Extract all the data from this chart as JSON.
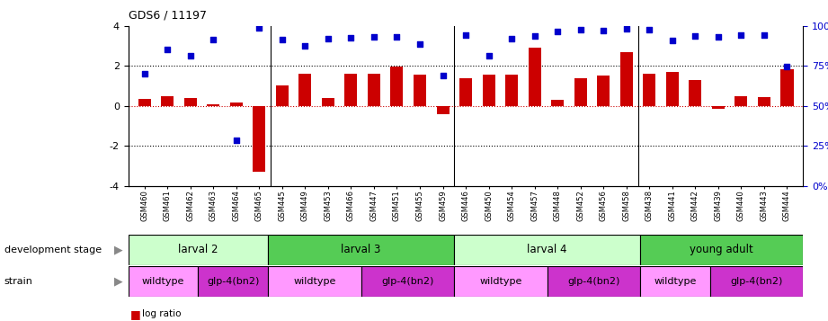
{
  "title": "GDS6 / 11197",
  "samples": [
    "GSM460",
    "GSM461",
    "GSM462",
    "GSM463",
    "GSM464",
    "GSM465",
    "GSM445",
    "GSM449",
    "GSM453",
    "GSM466",
    "GSM447",
    "GSM451",
    "GSM455",
    "GSM459",
    "GSM446",
    "GSM450",
    "GSM454",
    "GSM457",
    "GSM448",
    "GSM452",
    "GSM456",
    "GSM458",
    "GSM438",
    "GSM441",
    "GSM442",
    "GSM439",
    "GSM440",
    "GSM443",
    "GSM444"
  ],
  "log_ratio": [
    0.35,
    0.5,
    0.4,
    0.1,
    0.15,
    -3.3,
    1.0,
    1.6,
    0.4,
    1.6,
    1.6,
    1.95,
    1.55,
    -0.4,
    1.4,
    1.55,
    1.55,
    2.9,
    0.3,
    1.4,
    1.5,
    2.7,
    1.6,
    1.7,
    1.3,
    -0.15,
    0.5,
    0.45,
    1.85
  ],
  "percentile_y": [
    1.6,
    2.8,
    2.5,
    3.3,
    -1.7,
    3.9,
    3.3,
    3.0,
    3.35,
    3.4,
    3.45,
    3.45,
    3.1,
    1.5,
    3.55,
    2.5,
    3.35,
    3.5,
    3.7,
    3.8,
    3.75,
    3.85,
    3.8,
    3.25,
    3.5,
    3.45,
    3.55,
    3.55,
    1.95
  ],
  "bar_color": "#cc0000",
  "dot_color": "#0000cc",
  "dev_stages": [
    {
      "label": "larval 2",
      "start": 0,
      "end": 6,
      "color": "#ccffcc"
    },
    {
      "label": "larval 3",
      "start": 6,
      "end": 14,
      "color": "#55cc55"
    },
    {
      "label": "larval 4",
      "start": 14,
      "end": 22,
      "color": "#ccffcc"
    },
    {
      "label": "young adult",
      "start": 22,
      "end": 29,
      "color": "#55cc55"
    }
  ],
  "strain_groups": [
    {
      "label": "wildtype",
      "start": 0,
      "end": 3,
      "color": "#ff99ff"
    },
    {
      "label": "glp-4(bn2)",
      "start": 3,
      "end": 6,
      "color": "#cc33cc"
    },
    {
      "label": "wildtype",
      "start": 6,
      "end": 10,
      "color": "#ff99ff"
    },
    {
      "label": "glp-4(bn2)",
      "start": 10,
      "end": 14,
      "color": "#cc33cc"
    },
    {
      "label": "wildtype",
      "start": 14,
      "end": 18,
      "color": "#ff99ff"
    },
    {
      "label": "glp-4(bn2)",
      "start": 18,
      "end": 22,
      "color": "#cc33cc"
    },
    {
      "label": "wildtype",
      "start": 22,
      "end": 25,
      "color": "#ff99ff"
    },
    {
      "label": "glp-4(bn2)",
      "start": 25,
      "end": 29,
      "color": "#cc33cc"
    }
  ],
  "ylim": [
    -4,
    4
  ],
  "y2lim": [
    0,
    100
  ],
  "yticks": [
    -4,
    -2,
    0,
    2,
    4
  ],
  "y2ticks": [
    0,
    25,
    50,
    75,
    100
  ],
  "y2ticklabels": [
    "0%",
    "25%",
    "50%",
    "75%",
    "100%"
  ],
  "group_boundaries": [
    6,
    14,
    22
  ]
}
